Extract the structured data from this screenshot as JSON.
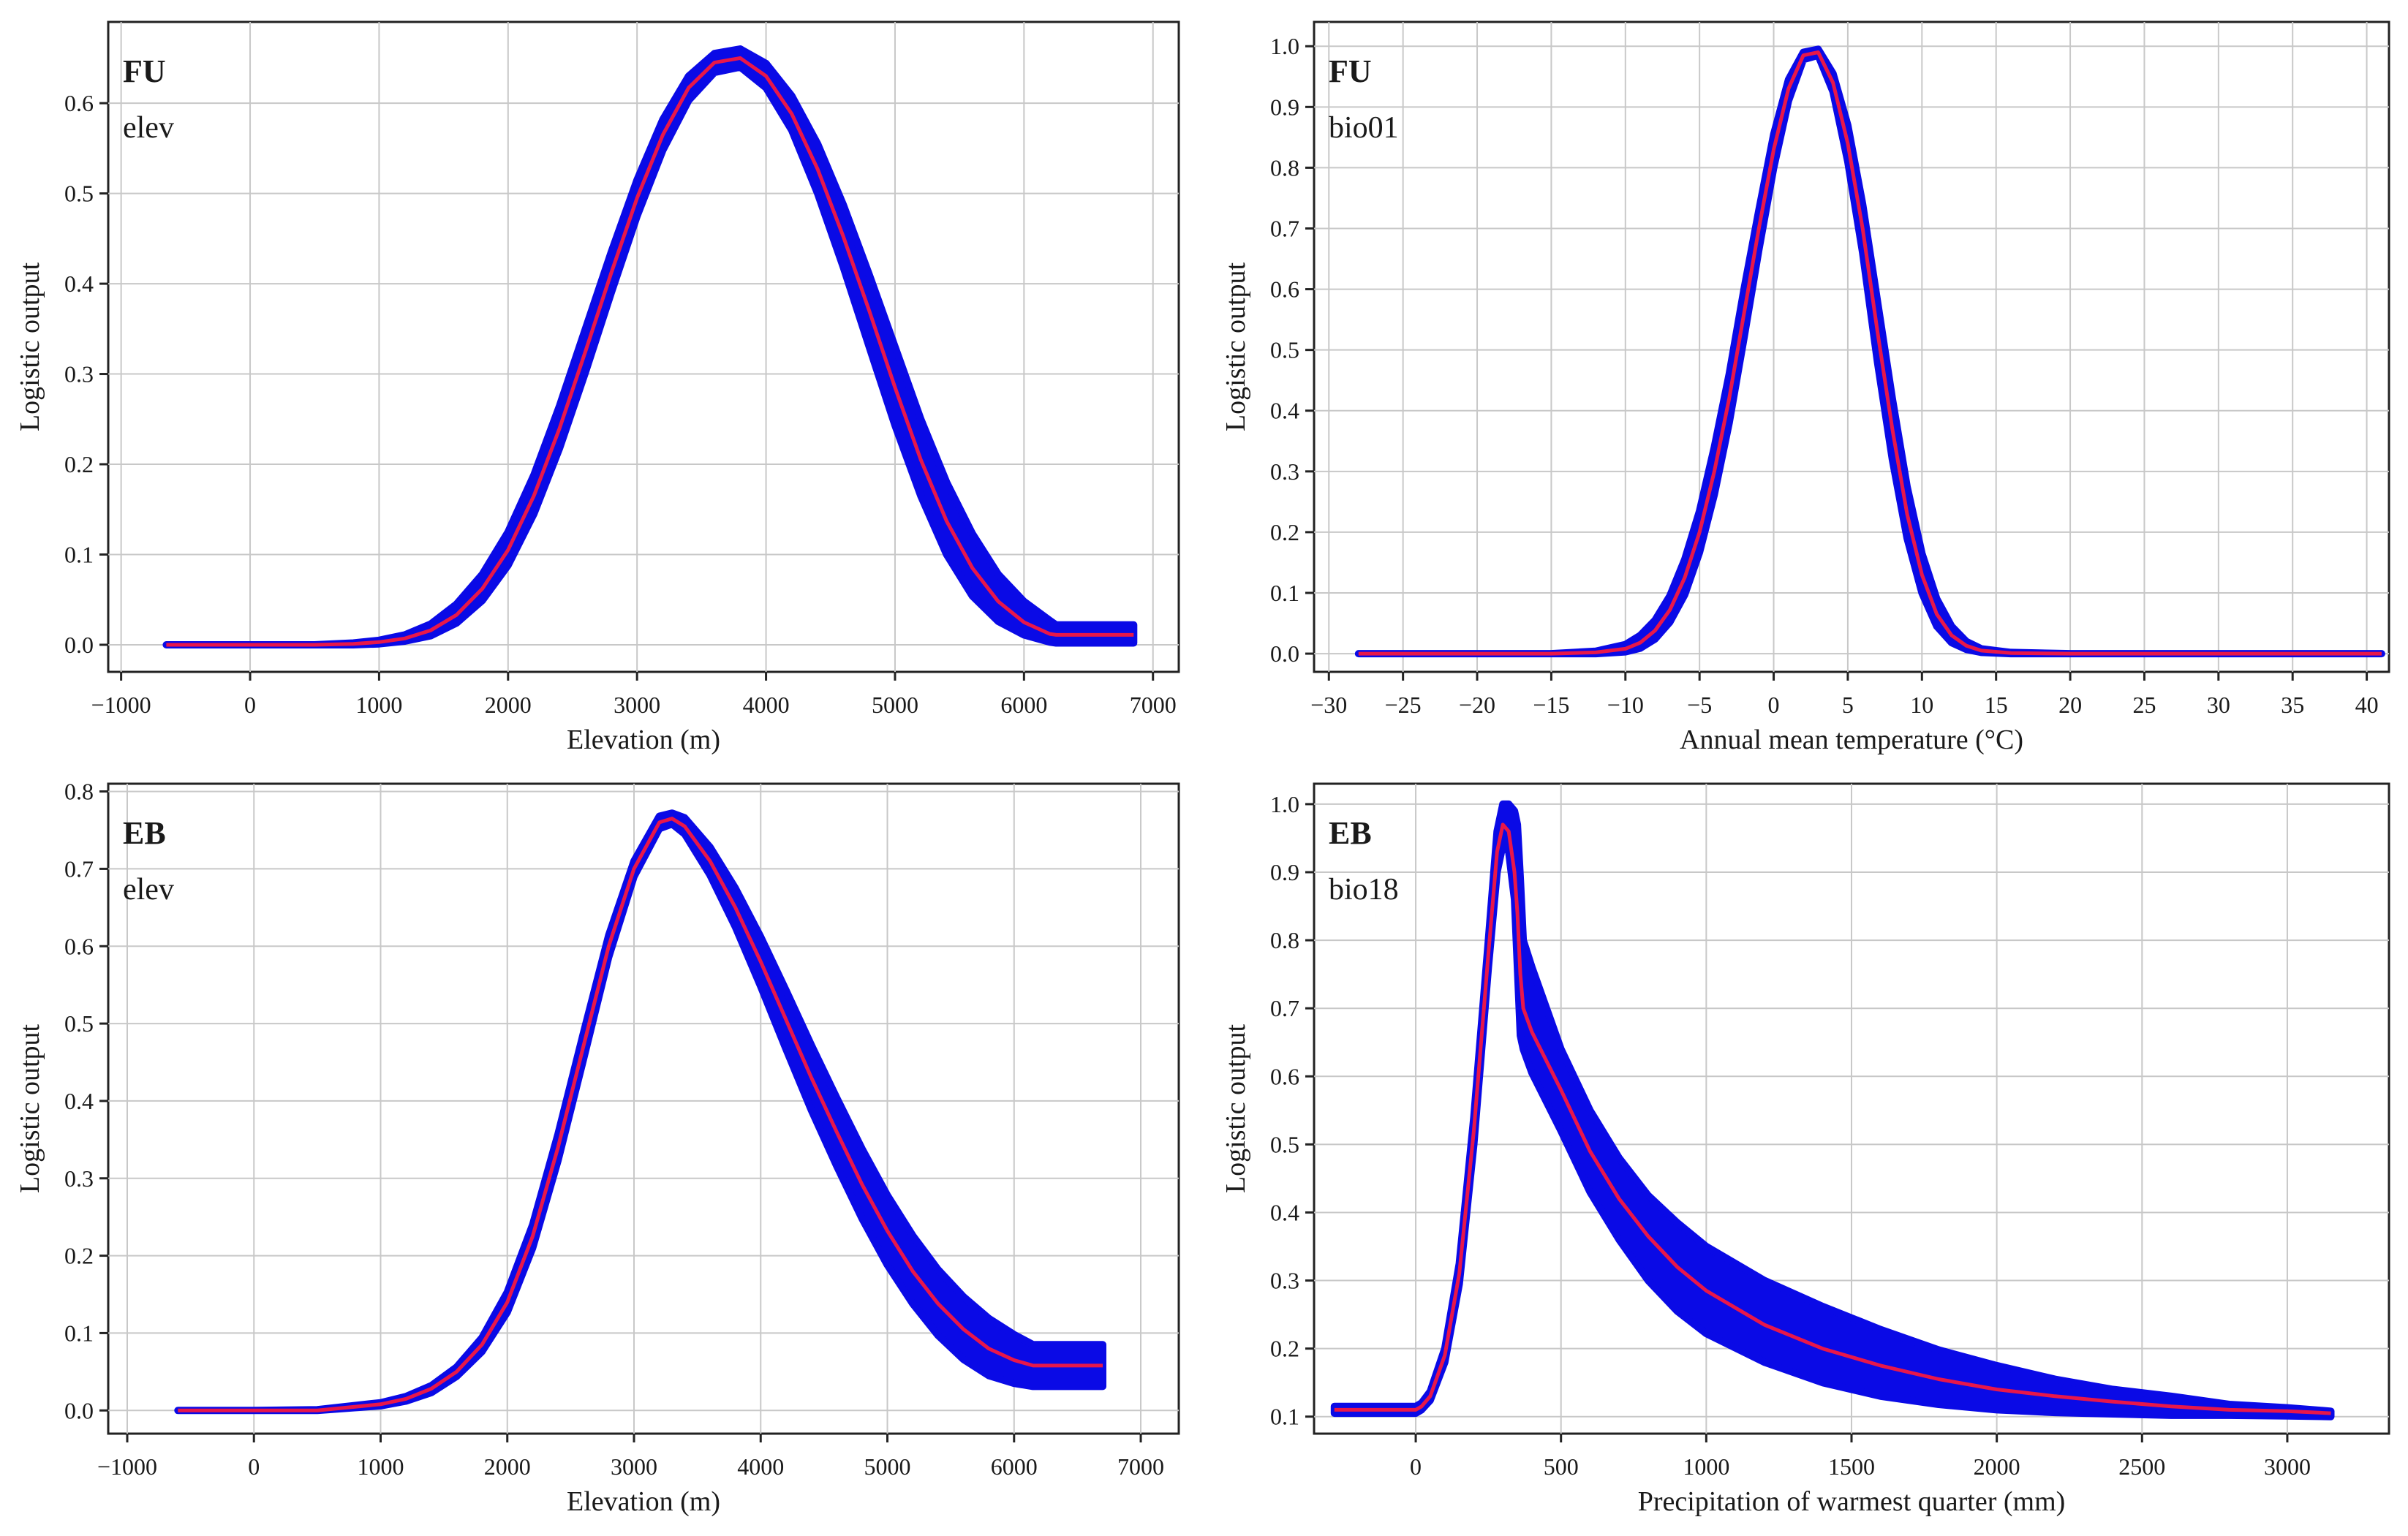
{
  "colors": {
    "band": "#0a0ae6",
    "mean": "#e8174a",
    "grid": "#c8c8c8",
    "axis": "#222222"
  },
  "chart_data": [
    {
      "type": "line",
      "panel_label": "FU",
      "variable": "elev",
      "xlabel": "Elevation (m)",
      "ylabel": "Logistic output",
      "xlim": [
        -1100,
        7200
      ],
      "ylim": [
        -0.03,
        0.69
      ],
      "xticks": [
        -1000,
        0,
        1000,
        2000,
        3000,
        4000,
        5000,
        6000,
        7000
      ],
      "xtick_labels": [
        "−1000",
        "0",
        "1000",
        "2000",
        "3000",
        "4000",
        "5000",
        "6000",
        "7000"
      ],
      "yticks": [
        0.0,
        0.1,
        0.2,
        0.3,
        0.4,
        0.5,
        0.6
      ],
      "ytick_labels": [
        "0.0",
        "0.1",
        "0.2",
        "0.3",
        "0.4",
        "0.5",
        "0.6"
      ],
      "x": [
        -650,
        0,
        500,
        800,
        1000,
        1200,
        1400,
        1600,
        1800,
        2000,
        2200,
        2400,
        2600,
        2800,
        3000,
        3200,
        3400,
        3600,
        3800,
        4000,
        4200,
        4400,
        4600,
        4800,
        5000,
        5200,
        5400,
        5600,
        5800,
        6000,
        6200,
        6250,
        6850
      ],
      "series": [
        {
          "name": "mean",
          "values": [
            0.0,
            0.0,
            0.0,
            0.001,
            0.003,
            0.007,
            0.016,
            0.033,
            0.062,
            0.105,
            0.165,
            0.24,
            0.325,
            0.412,
            0.495,
            0.565,
            0.617,
            0.645,
            0.65,
            0.63,
            0.588,
            0.527,
            0.452,
            0.37,
            0.285,
            0.205,
            0.137,
            0.085,
            0.048,
            0.025,
            0.012,
            0.011,
            0.011
          ]
        },
        {
          "name": "upper",
          "values": [
            0.0,
            0.0,
            0.0,
            0.002,
            0.005,
            0.011,
            0.023,
            0.045,
            0.078,
            0.125,
            0.188,
            0.265,
            0.35,
            0.435,
            0.515,
            0.582,
            0.63,
            0.655,
            0.66,
            0.644,
            0.608,
            0.555,
            0.487,
            0.41,
            0.33,
            0.25,
            0.18,
            0.123,
            0.078,
            0.048,
            0.027,
            0.022,
            0.022
          ]
        },
        {
          "name": "lower",
          "values": [
            0.0,
            0.0,
            0.0,
            0.0,
            0.001,
            0.004,
            0.01,
            0.024,
            0.049,
            0.088,
            0.145,
            0.218,
            0.302,
            0.39,
            0.475,
            0.548,
            0.603,
            0.634,
            0.64,
            0.617,
            0.57,
            0.5,
            0.418,
            0.33,
            0.243,
            0.165,
            0.1,
            0.054,
            0.026,
            0.011,
            0.003,
            0.002,
            0.002
          ]
        }
      ]
    },
    {
      "type": "line",
      "panel_label": "FU",
      "variable": "bio01",
      "xlabel": "Annual mean temperature (°C)",
      "ylabel": "Logistic output",
      "xlim": [
        -31,
        41.5
      ],
      "ylim": [
        -0.03,
        1.04
      ],
      "xticks": [
        -30,
        -25,
        -20,
        -15,
        -10,
        -5,
        0,
        5,
        10,
        15,
        20,
        25,
        30,
        35,
        40
      ],
      "xtick_labels": [
        "−30",
        "−25",
        "−20",
        "−15",
        "−10",
        "−5",
        "0",
        "5",
        "10",
        "15",
        "20",
        "25",
        "30",
        "35",
        "40"
      ],
      "yticks": [
        0.0,
        0.1,
        0.2,
        0.3,
        0.4,
        0.5,
        0.6,
        0.7,
        0.8,
        0.9,
        1.0
      ],
      "ytick_labels": [
        "0.0",
        "0.1",
        "0.2",
        "0.3",
        "0.4",
        "0.5",
        "0.6",
        "0.7",
        "0.8",
        "0.9",
        "1.0"
      ],
      "x": [
        -28,
        -20,
        -15,
        -12,
        -10,
        -9,
        -8,
        -7,
        -6,
        -5,
        -4,
        -3,
        -2,
        -1,
        0,
        1,
        2,
        3,
        4,
        5,
        6,
        7,
        8,
        9,
        10,
        11,
        12,
        13,
        14,
        16,
        20,
        41
      ],
      "series": [
        {
          "name": "mean",
          "values": [
            0.0,
            0.0,
            0.0,
            0.002,
            0.008,
            0.018,
            0.038,
            0.072,
            0.125,
            0.2,
            0.3,
            0.42,
            0.56,
            0.7,
            0.83,
            0.93,
            0.985,
            0.99,
            0.94,
            0.84,
            0.7,
            0.53,
            0.37,
            0.23,
            0.13,
            0.065,
            0.03,
            0.013,
            0.005,
            0.001,
            0.0,
            0.0
          ]
        },
        {
          "name": "upper",
          "values": [
            0.0,
            0.0,
            0.0,
            0.004,
            0.015,
            0.03,
            0.055,
            0.095,
            0.155,
            0.235,
            0.34,
            0.46,
            0.6,
            0.73,
            0.855,
            0.945,
            0.99,
            0.995,
            0.955,
            0.87,
            0.74,
            0.58,
            0.42,
            0.275,
            0.165,
            0.09,
            0.045,
            0.02,
            0.008,
            0.002,
            0.0,
            0.0
          ]
        },
        {
          "name": "lower",
          "values": [
            0.0,
            0.0,
            0.0,
            0.0,
            0.003,
            0.009,
            0.024,
            0.052,
            0.097,
            0.167,
            0.262,
            0.38,
            0.52,
            0.665,
            0.8,
            0.91,
            0.978,
            0.985,
            0.925,
            0.81,
            0.66,
            0.48,
            0.32,
            0.19,
            0.1,
            0.045,
            0.018,
            0.007,
            0.002,
            0.0,
            0.0,
            0.0
          ]
        }
      ]
    },
    {
      "type": "line",
      "panel_label": "EB",
      "variable": "elev",
      "xlabel": "Elevation (m)",
      "ylabel": "Logistic output",
      "xlim": [
        -1150,
        7300
      ],
      "ylim": [
        -0.03,
        0.81
      ],
      "xticks": [
        -1000,
        0,
        1000,
        2000,
        3000,
        4000,
        5000,
        6000,
        7000
      ],
      "xtick_labels": [
        "−1000",
        "0",
        "1000",
        "2000",
        "3000",
        "4000",
        "5000",
        "6000",
        "7000"
      ],
      "yticks": [
        0.0,
        0.1,
        0.2,
        0.3,
        0.4,
        0.5,
        0.6,
        0.7,
        0.8
      ],
      "ytick_labels": [
        "0.0",
        "0.1",
        "0.2",
        "0.3",
        "0.4",
        "0.5",
        "0.6",
        "0.7",
        "0.8"
      ],
      "x": [
        -600,
        0,
        500,
        1000,
        1200,
        1400,
        1600,
        1800,
        2000,
        2200,
        2400,
        2600,
        2800,
        3000,
        3200,
        3300,
        3400,
        3600,
        3800,
        4000,
        4200,
        4400,
        4600,
        4800,
        5000,
        5200,
        5400,
        5600,
        5800,
        6000,
        6150,
        6700
      ],
      "series": [
        {
          "name": "mean",
          "values": [
            0.0,
            0.0,
            0.0,
            0.008,
            0.015,
            0.028,
            0.05,
            0.085,
            0.14,
            0.225,
            0.34,
            0.47,
            0.6,
            0.7,
            0.76,
            0.765,
            0.755,
            0.71,
            0.65,
            0.58,
            0.505,
            0.43,
            0.36,
            0.292,
            0.232,
            0.18,
            0.138,
            0.105,
            0.08,
            0.065,
            0.058,
            0.058
          ]
        },
        {
          "name": "upper",
          "values": [
            0.0,
            0.0,
            0.001,
            0.01,
            0.018,
            0.032,
            0.056,
            0.094,
            0.153,
            0.24,
            0.357,
            0.487,
            0.614,
            0.71,
            0.768,
            0.772,
            0.766,
            0.728,
            0.675,
            0.612,
            0.543,
            0.472,
            0.404,
            0.338,
            0.278,
            0.226,
            0.182,
            0.147,
            0.119,
            0.098,
            0.085,
            0.085
          ]
        },
        {
          "name": "lower",
          "values": [
            0.0,
            0.0,
            0.0,
            0.006,
            0.012,
            0.023,
            0.044,
            0.076,
            0.127,
            0.21,
            0.323,
            0.453,
            0.586,
            0.69,
            0.752,
            0.758,
            0.745,
            0.692,
            0.625,
            0.548,
            0.467,
            0.388,
            0.316,
            0.248,
            0.188,
            0.138,
            0.097,
            0.066,
            0.045,
            0.035,
            0.031,
            0.031
          ]
        }
      ]
    },
    {
      "type": "line",
      "panel_label": "EB",
      "variable": "bio18",
      "xlabel": "Precipitation of warmest quarter (mm)",
      "ylabel": "Logistic output",
      "xlim": [
        -350,
        3350
      ],
      "ylim": [
        0.075,
        1.03
      ],
      "xticks": [
        0,
        500,
        1000,
        1500,
        2000,
        2500,
        3000
      ],
      "xtick_labels": [
        "0",
        "500",
        "1000",
        "1500",
        "2000",
        "2500",
        "3000"
      ],
      "yticks": [
        0.1,
        0.2,
        0.3,
        0.4,
        0.5,
        0.6,
        0.7,
        0.8,
        0.9,
        1.0
      ],
      "ytick_labels": [
        "0.1",
        "0.2",
        "0.3",
        "0.4",
        "0.5",
        "0.6",
        "0.7",
        "0.8",
        "0.9",
        "1.0"
      ],
      "x": [
        -280,
        0,
        20,
        50,
        100,
        150,
        200,
        250,
        280,
        300,
        320,
        340,
        350,
        360,
        370,
        400,
        500,
        600,
        700,
        800,
        900,
        1000,
        1200,
        1400,
        1600,
        1800,
        2000,
        2200,
        2400,
        2600,
        2800,
        3000,
        3150
      ],
      "series": [
        {
          "name": "mean",
          "values": [
            0.11,
            0.11,
            0.115,
            0.13,
            0.19,
            0.31,
            0.52,
            0.78,
            0.93,
            0.97,
            0.96,
            0.9,
            0.84,
            0.75,
            0.7,
            0.665,
            0.58,
            0.49,
            0.42,
            0.365,
            0.32,
            0.285,
            0.235,
            0.2,
            0.175,
            0.155,
            0.14,
            0.13,
            0.122,
            0.115,
            0.11,
            0.108,
            0.105
          ]
        },
        {
          "name": "upper",
          "values": [
            0.115,
            0.115,
            0.12,
            0.137,
            0.2,
            0.325,
            0.54,
            0.8,
            0.96,
            1.0,
            1.0,
            0.99,
            0.97,
            0.89,
            0.8,
            0.76,
            0.64,
            0.55,
            0.48,
            0.425,
            0.385,
            0.35,
            0.3,
            0.262,
            0.228,
            0.198,
            0.175,
            0.155,
            0.14,
            0.13,
            0.118,
            0.113,
            0.108
          ]
        },
        {
          "name": "lower",
          "values": [
            0.105,
            0.105,
            0.11,
            0.124,
            0.18,
            0.295,
            0.5,
            0.76,
            0.9,
            0.94,
            0.93,
            0.86,
            0.76,
            0.66,
            0.64,
            0.605,
            0.52,
            0.43,
            0.36,
            0.3,
            0.255,
            0.222,
            0.18,
            0.15,
            0.13,
            0.118,
            0.11,
            0.106,
            0.104,
            0.102,
            0.102,
            0.101,
            0.1
          ]
        }
      ]
    }
  ]
}
